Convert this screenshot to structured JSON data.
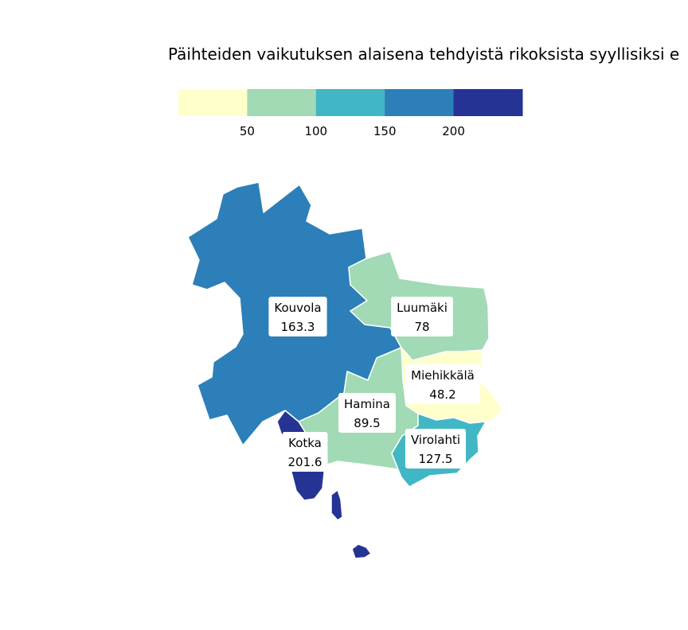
{
  "title": "Päihteiden vaikutuksen alaisena tehdyistä rikoksista syyllisiksi e",
  "legend": {
    "colors": [
      "#ffffcc",
      "#a1dab4",
      "#41b6c4",
      "#2c7fb8",
      "#253494"
    ],
    "breaks": [
      50,
      100,
      150,
      200
    ]
  },
  "chart_data": {
    "type": "choropleth",
    "title": "Päihteiden vaikutuksen alaisena tehdyistä rikoksista syyllisiksi e",
    "regions": [
      {
        "name": "Kouvola",
        "value": 163.3,
        "value_label": "163.3",
        "color": "#2c7fb8"
      },
      {
        "name": "Luumäki",
        "value": 78,
        "value_label": "78",
        "color": "#a1dab4"
      },
      {
        "name": "Miehikkälä",
        "value": 48.2,
        "value_label": "48.2",
        "color": "#ffffcc"
      },
      {
        "name": "Hamina",
        "value": 89.5,
        "value_label": "89.5",
        "color": "#a1dab4"
      },
      {
        "name": "Virolahti",
        "value": 127.5,
        "value_label": "127.5",
        "color": "#41b6c4"
      },
      {
        "name": "Kotka",
        "value": 201.6,
        "value_label": "201.6",
        "color": "#253494"
      }
    ]
  }
}
